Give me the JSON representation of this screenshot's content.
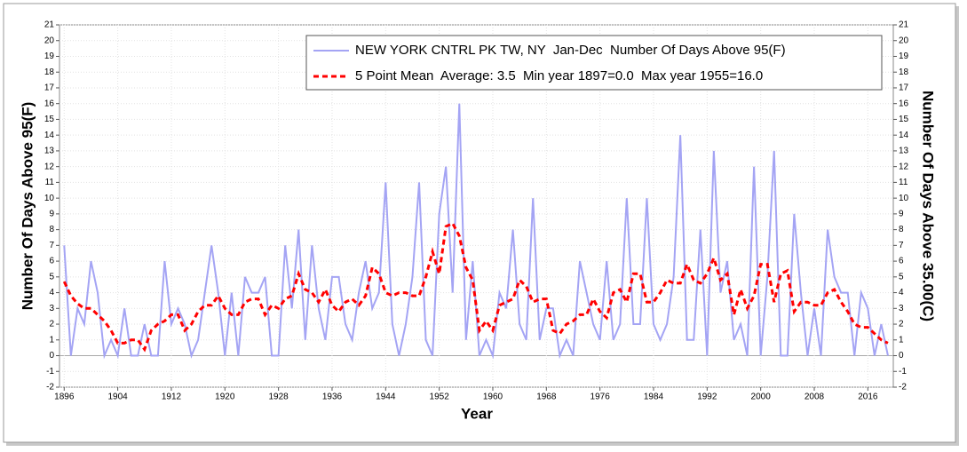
{
  "chart_data": {
    "type": "line",
    "xlabel": "Year",
    "ylabel": "Number Of Days Above 95(F)",
    "y2label": "Number Of Days Above 35.00(C)",
    "x": [
      1896,
      1897,
      1898,
      1899,
      1900,
      1901,
      1902,
      1903,
      1904,
      1905,
      1906,
      1907,
      1908,
      1909,
      1910,
      1911,
      1912,
      1913,
      1914,
      1915,
      1916,
      1917,
      1918,
      1919,
      1920,
      1921,
      1922,
      1923,
      1924,
      1925,
      1926,
      1927,
      1928,
      1929,
      1930,
      1931,
      1932,
      1933,
      1934,
      1935,
      1936,
      1937,
      1938,
      1939,
      1940,
      1941,
      1942,
      1943,
      1944,
      1945,
      1946,
      1947,
      1948,
      1949,
      1950,
      1951,
      1952,
      1953,
      1954,
      1955,
      1956,
      1957,
      1958,
      1959,
      1960,
      1961,
      1962,
      1963,
      1964,
      1965,
      1966,
      1967,
      1968,
      1969,
      1970,
      1971,
      1972,
      1973,
      1974,
      1975,
      1976,
      1977,
      1978,
      1979,
      1980,
      1981,
      1982,
      1983,
      1984,
      1985,
      1986,
      1987,
      1988,
      1989,
      1990,
      1991,
      1992,
      1993,
      1994,
      1995,
      1996,
      1997,
      1998,
      1999,
      2000,
      2001,
      2002,
      2003,
      2004,
      2005,
      2006,
      2007,
      2008,
      2009,
      2010,
      2011,
      2012,
      2013,
      2014,
      2015,
      2016,
      2017,
      2018,
      2019
    ],
    "series": [
      {
        "name": "NEW YORK CNTRL PK TW, NY  Jan-Dec  Number Of Days Above 95(F)",
        "color": "#a4a4f4",
        "dash": false,
        "values": [
          7,
          0,
          3,
          2,
          6,
          4,
          0,
          1,
          0,
          3,
          0,
          0,
          2,
          0,
          0,
          6,
          2,
          3,
          2,
          0,
          1,
          4,
          7,
          4,
          0,
          4,
          0,
          5,
          4,
          4,
          5,
          0,
          0,
          7,
          3,
          8,
          1,
          7,
          3,
          1,
          5,
          5,
          2,
          1,
          4,
          6,
          3,
          4,
          11,
          2,
          0,
          2,
          5,
          11,
          1,
          0,
          9,
          12,
          4,
          16,
          1,
          6,
          0,
          1,
          0,
          4,
          3,
          8,
          2,
          1,
          10,
          1,
          3,
          3,
          0,
          1,
          0,
          6,
          4,
          2,
          1,
          6,
          1,
          2,
          10,
          2,
          2,
          10,
          2,
          1,
          2,
          5,
          14,
          1,
          1,
          8,
          0,
          13,
          4,
          6,
          1,
          2,
          0,
          12,
          0,
          5,
          13,
          0,
          0,
          9,
          4,
          0,
          3,
          0,
          8,
          5,
          4,
          4,
          0,
          4,
          3,
          0,
          2,
          0
        ]
      },
      {
        "name": "5 Point Mean  Average: 3.5  Min year 1897=0.0  Max year 1955=16.0",
        "color": "#ff0000",
        "dash": true,
        "values": [
          4.7,
          3.8,
          3.3,
          3.0,
          3.0,
          2.6,
          2.2,
          1.6,
          0.8,
          0.8,
          1.0,
          1.0,
          0.4,
          1.6,
          2.0,
          2.2,
          2.6,
          2.6,
          1.6,
          2.0,
          2.8,
          3.2,
          3.2,
          3.8,
          3.0,
          2.6,
          2.6,
          3.4,
          3.6,
          3.6,
          2.6,
          3.2,
          3.0,
          3.6,
          3.8,
          5.2,
          4.2,
          4.0,
          3.4,
          4.2,
          3.2,
          2.8,
          3.4,
          3.6,
          3.2,
          3.8,
          5.6,
          5.2,
          4.0,
          3.8,
          4.0,
          4.0,
          3.8,
          3.8,
          5.0,
          6.6,
          5.2,
          8.2,
          8.4,
          7.6,
          5.6,
          4.8,
          1.6,
          2.2,
          1.6,
          3.2,
          3.4,
          3.6,
          4.8,
          4.4,
          3.4,
          3.6,
          3.6,
          1.6,
          1.4,
          2.0,
          2.2,
          2.6,
          2.6,
          3.6,
          2.8,
          2.4,
          4.0,
          4.2,
          3.4,
          5.2,
          5.2,
          3.4,
          3.4,
          4.0,
          4.8,
          4.6,
          4.6,
          5.8,
          4.8,
          4.6,
          5.2,
          6.2,
          4.8,
          5.2,
          2.6,
          4.2,
          3.0,
          3.8,
          5.8,
          5.8,
          3.4,
          5.2,
          5.4,
          2.8,
          3.4,
          3.4,
          3.2,
          3.2,
          4.0,
          4.2,
          3.4,
          2.8,
          2.0,
          1.8,
          1.8,
          1.4,
          1.0,
          0.8
        ]
      }
    ],
    "xlim": [
      1895.3,
      2019.8
    ],
    "xticks": [
      1896,
      1904,
      1912,
      1920,
      1928,
      1936,
      1944,
      1952,
      1960,
      1968,
      1976,
      1984,
      1992,
      2000,
      2008,
      2016
    ],
    "ylim": [
      -2,
      21
    ],
    "yticks": [
      -2,
      -1,
      0,
      1,
      2,
      3,
      4,
      5,
      6,
      7,
      8,
      9,
      10,
      11,
      12,
      13,
      14,
      15,
      16,
      17,
      18,
      19,
      20,
      21
    ],
    "y2lim": [
      -2,
      21
    ],
    "y2ticks": [
      -2,
      -1,
      0,
      1,
      2,
      3,
      4,
      5,
      6,
      7,
      8,
      9,
      10,
      11,
      12,
      13,
      14,
      15,
      16,
      17,
      18,
      19,
      20,
      21
    ],
    "grid": true
  }
}
